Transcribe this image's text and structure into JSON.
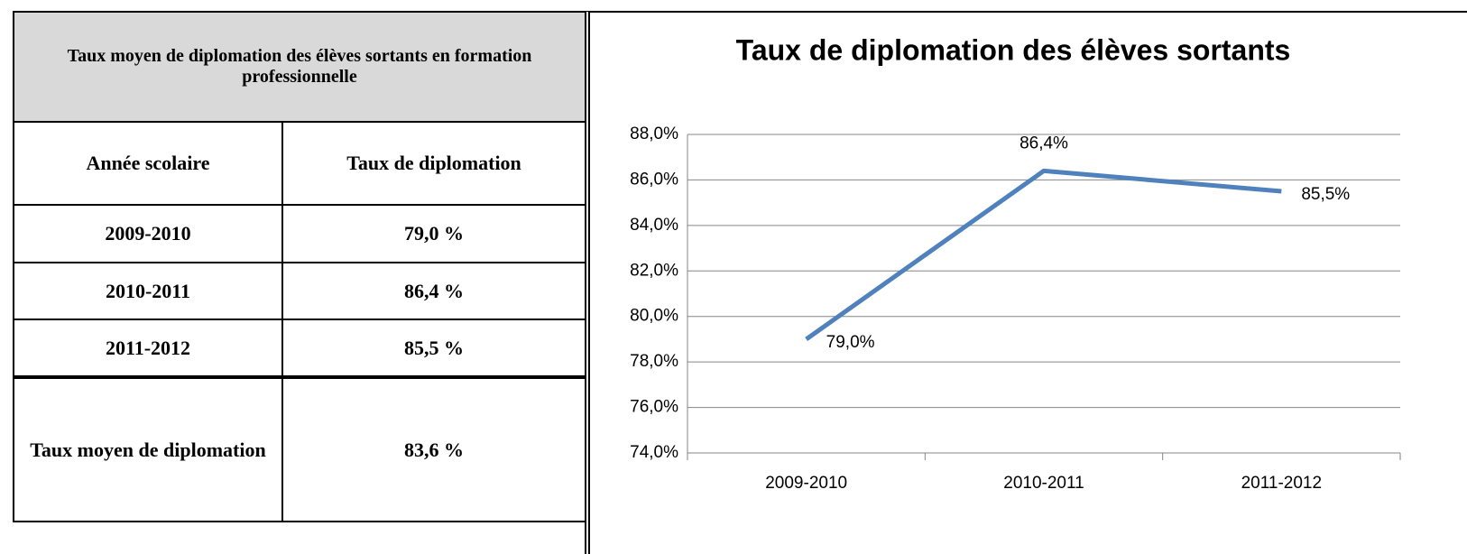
{
  "table": {
    "title": "Taux moyen de diplomation des élèves sortants en formation professionnelle",
    "columns": [
      "Année scolaire",
      "Taux de diplomation"
    ],
    "rows": [
      [
        "2009-2010",
        "79,0 %"
      ],
      [
        "2010-2011",
        "86,4 %"
      ],
      [
        "2011-2012",
        "85,5 %"
      ]
    ],
    "footer": [
      "Taux moyen de diplomation",
      "83,6 %"
    ]
  },
  "chart_data": {
    "type": "line",
    "title": "Taux de diplomation des élèves sortants",
    "categories": [
      "2009-2010",
      "2010-2011",
      "2011-2012"
    ],
    "series": [
      {
        "color": "#4f81bd",
        "values": [
          79.0,
          86.4,
          85.5
        ],
        "value_labels": [
          "79,0%",
          "86,4%",
          "85,5%"
        ]
      }
    ],
    "ylim": [
      74,
      88
    ],
    "yticks": [
      {
        "value": 74,
        "label": "74,0%"
      },
      {
        "value": 76,
        "label": "76,0%"
      },
      {
        "value": 78,
        "label": "78,0%"
      },
      {
        "value": 80,
        "label": "80,0%"
      },
      {
        "value": 82,
        "label": "82,0%"
      },
      {
        "value": 84,
        "label": "84,0%"
      },
      {
        "value": 86,
        "label": "86,0%"
      },
      {
        "value": 88,
        "label": "88,0%"
      }
    ],
    "grid": true
  }
}
